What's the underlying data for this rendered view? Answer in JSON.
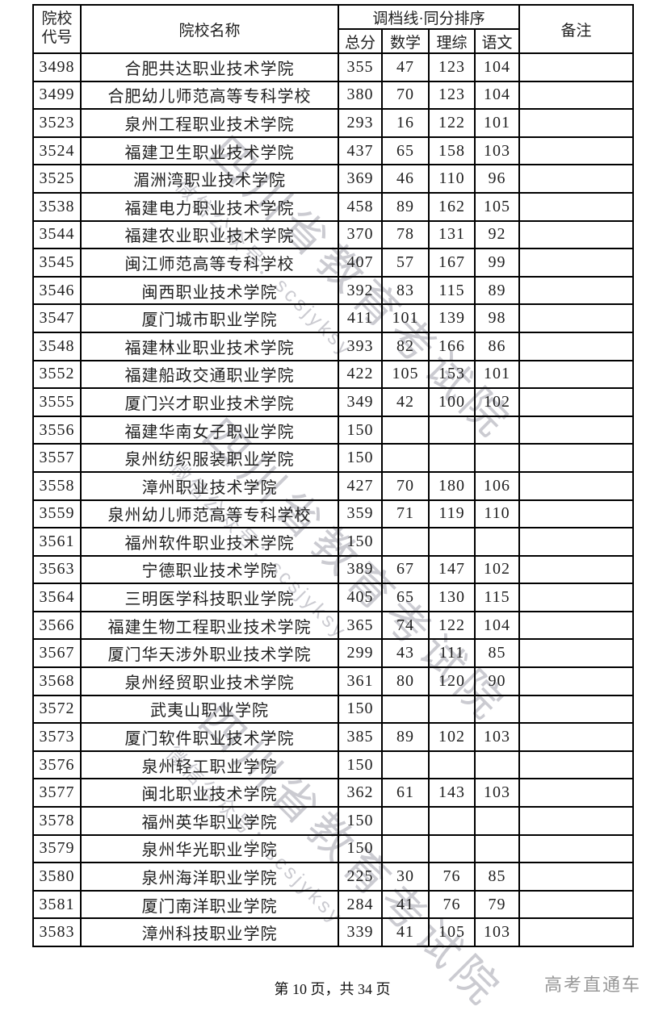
{
  "header": {
    "code": "院校\n代号",
    "name": "院校名称",
    "score_group": "调档线·同分排序",
    "total": "总分",
    "math": "数学",
    "science": "理综",
    "chinese": "语文",
    "remark": "备注"
  },
  "rows": [
    {
      "code": "3498",
      "name": "合肥共达职业技术学院",
      "total": "355",
      "math": "47",
      "science": "123",
      "chinese": "104",
      "remark": ""
    },
    {
      "code": "3499",
      "name": "合肥幼儿师范高等专科学校",
      "total": "380",
      "math": "70",
      "science": "123",
      "chinese": "104",
      "remark": ""
    },
    {
      "code": "3523",
      "name": "泉州工程职业技术学院",
      "total": "293",
      "math": "16",
      "science": "122",
      "chinese": "101",
      "remark": ""
    },
    {
      "code": "3524",
      "name": "福建卫生职业技术学院",
      "total": "437",
      "math": "65",
      "science": "158",
      "chinese": "103",
      "remark": ""
    },
    {
      "code": "3525",
      "name": "湄洲湾职业技术学院",
      "total": "369",
      "math": "46",
      "science": "110",
      "chinese": "96",
      "remark": ""
    },
    {
      "code": "3538",
      "name": "福建电力职业技术学院",
      "total": "458",
      "math": "89",
      "science": "162",
      "chinese": "105",
      "remark": ""
    },
    {
      "code": "3544",
      "name": "福建农业职业技术学院",
      "total": "370",
      "math": "78",
      "science": "131",
      "chinese": "92",
      "remark": ""
    },
    {
      "code": "3545",
      "name": "闽江师范高等专科学校",
      "total": "407",
      "math": "57",
      "science": "167",
      "chinese": "99",
      "remark": ""
    },
    {
      "code": "3546",
      "name": "闽西职业技术学院",
      "total": "392",
      "math": "83",
      "science": "115",
      "chinese": "89",
      "remark": ""
    },
    {
      "code": "3547",
      "name": "厦门城市职业学院",
      "total": "411",
      "math": "101",
      "science": "139",
      "chinese": "98",
      "remark": ""
    },
    {
      "code": "3548",
      "name": "福建林业职业技术学院",
      "total": "393",
      "math": "82",
      "science": "166",
      "chinese": "86",
      "remark": ""
    },
    {
      "code": "3552",
      "name": "福建船政交通职业学院",
      "total": "422",
      "math": "105",
      "science": "153",
      "chinese": "101",
      "remark": ""
    },
    {
      "code": "3555",
      "name": "厦门兴才职业技术学院",
      "total": "349",
      "math": "42",
      "science": "100",
      "chinese": "102",
      "remark": ""
    },
    {
      "code": "3556",
      "name": "福建华南女子职业学院",
      "total": "150",
      "math": "",
      "science": "",
      "chinese": "",
      "remark": ""
    },
    {
      "code": "3557",
      "name": "泉州纺织服装职业学院",
      "total": "150",
      "math": "",
      "science": "",
      "chinese": "",
      "remark": ""
    },
    {
      "code": "3558",
      "name": "漳州职业技术学院",
      "total": "427",
      "math": "70",
      "science": "180",
      "chinese": "106",
      "remark": ""
    },
    {
      "code": "3559",
      "name": "泉州幼儿师范高等专科学校",
      "total": "359",
      "math": "71",
      "science": "119",
      "chinese": "110",
      "remark": ""
    },
    {
      "code": "3561",
      "name": "福州软件职业技术学院",
      "total": "150",
      "math": "",
      "science": "",
      "chinese": "",
      "remark": ""
    },
    {
      "code": "3563",
      "name": "宁德职业技术学院",
      "total": "389",
      "math": "67",
      "science": "147",
      "chinese": "102",
      "remark": ""
    },
    {
      "code": "3564",
      "name": "三明医学科技职业学院",
      "total": "405",
      "math": "65",
      "science": "130",
      "chinese": "115",
      "remark": ""
    },
    {
      "code": "3566",
      "name": "福建生物工程职业技术学院",
      "total": "365",
      "math": "74",
      "science": "122",
      "chinese": "104",
      "remark": ""
    },
    {
      "code": "3567",
      "name": "厦门华天涉外职业技术学院",
      "total": "299",
      "math": "43",
      "science": "111",
      "chinese": "85",
      "remark": ""
    },
    {
      "code": "3568",
      "name": "泉州经贸职业技术学院",
      "total": "361",
      "math": "80",
      "science": "120",
      "chinese": "90",
      "remark": ""
    },
    {
      "code": "3572",
      "name": "武夷山职业学院",
      "total": "150",
      "math": "",
      "science": "",
      "chinese": "",
      "remark": ""
    },
    {
      "code": "3573",
      "name": "厦门软件职业技术学院",
      "total": "385",
      "math": "89",
      "science": "102",
      "chinese": "103",
      "remark": ""
    },
    {
      "code": "3576",
      "name": "泉州轻工职业学院",
      "total": "150",
      "math": "",
      "science": "",
      "chinese": "",
      "remark": ""
    },
    {
      "code": "3577",
      "name": "闽北职业技术学院",
      "total": "362",
      "math": "61",
      "science": "143",
      "chinese": "103",
      "remark": ""
    },
    {
      "code": "3578",
      "name": "福州英华职业学院",
      "total": "150",
      "math": "",
      "science": "",
      "chinese": "",
      "remark": ""
    },
    {
      "code": "3579",
      "name": "泉州华光职业学院",
      "total": "150",
      "math": "",
      "science": "",
      "chinese": "",
      "remark": ""
    },
    {
      "code": "3580",
      "name": "泉州海洋职业学院",
      "total": "225",
      "math": "30",
      "science": "76",
      "chinese": "85",
      "remark": ""
    },
    {
      "code": "3581",
      "name": "厦门南洋职业学院",
      "total": "284",
      "math": "41",
      "science": "76",
      "chinese": "79",
      "remark": ""
    },
    {
      "code": "3583",
      "name": "漳州科技职业学院",
      "total": "339",
      "math": "41",
      "science": "105",
      "chinese": "103",
      "remark": ""
    }
  ],
  "watermark": {
    "line1": "四川省教育考试院",
    "line2": "微信公众号：scsjyksy"
  },
  "footer": {
    "page_info": "第 10 页，共 34 页",
    "brand": "高考直通车"
  },
  "colors": {
    "border": "#000000",
    "text": "#1f1f1f",
    "watermark": "#7e7e8c",
    "brand_gray": "#989898"
  }
}
